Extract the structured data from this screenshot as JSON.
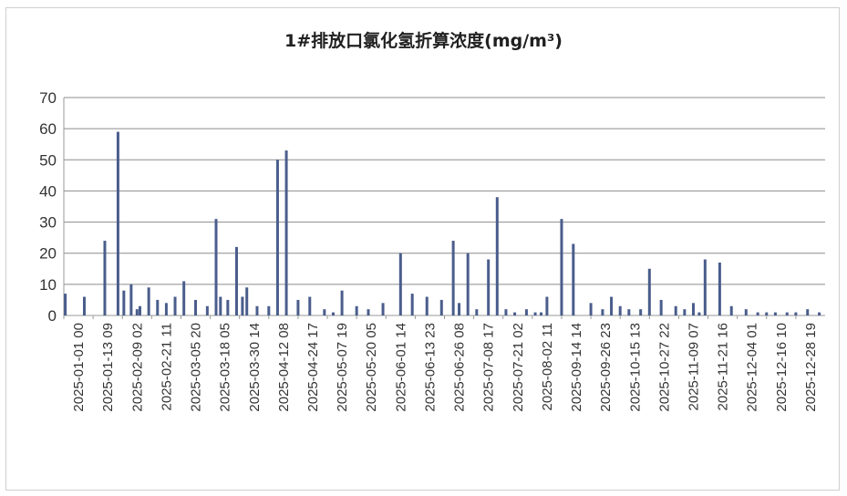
{
  "chart_data": {
    "type": "bar",
    "title": "1#排放口氯化氢折算浓度(mg/m³)",
    "xlabel": "",
    "ylabel": "",
    "ylim": [
      0,
      70
    ],
    "yticks": [
      0,
      10,
      20,
      30,
      40,
      50,
      60,
      70
    ],
    "grid": true,
    "legend": "none",
    "colors": {
      "bar": "#4a5d8c",
      "grid": "#8c8c8c",
      "axis": "#9a9a9a"
    },
    "tick_labels": [
      "2025-01-01 00",
      "2025-01-13 09",
      "2025-02-09 02",
      "2025-02-21 11",
      "2025-03-05 20",
      "2025-03-18 05",
      "2025-03-30 14",
      "2025-04-12 08",
      "2025-04-24 17",
      "2025-05-07 19",
      "2025-05-20 05",
      "2025-06-01 14",
      "2025-06-13 23",
      "2025-06-26 08",
      "2025-07-08 17",
      "2025-07-21 02",
      "2025-08-02 11",
      "2025-09-14 14",
      "2025-09-26 23",
      "2025-10-15 13",
      "2025-10-27 22",
      "2025-11-09 07",
      "2025-11-21 16",
      "2025-12-04 01",
      "2025-12-16 10",
      "2025-12-28 19"
    ],
    "series": [
      {
        "x": [
          0.05,
          0.7,
          1.4,
          1.85,
          2.05,
          2.3,
          2.5,
          2.6,
          2.9,
          3.2,
          3.5,
          3.8,
          4.1,
          4.5,
          4.9,
          5.2,
          5.35,
          5.6,
          5.9,
          6.1,
          6.25,
          6.6,
          7.0,
          7.3,
          7.6,
          8.0,
          8.4,
          8.9,
          9.2,
          9.5,
          10.0,
          10.4,
          10.9,
          11.5,
          11.9,
          12.4,
          12.9,
          13.3,
          13.5,
          13.8,
          14.1,
          14.5,
          14.8,
          15.1,
          15.4,
          15.8,
          16.1,
          16.3,
          16.5,
          17.0,
          17.4,
          18.0,
          18.4,
          18.7,
          19.0,
          19.3,
          19.7,
          20.0,
          20.4,
          20.9,
          21.2,
          21.5,
          21.7,
          21.9,
          22.4,
          22.8,
          23.3,
          23.7,
          24.0,
          24.3,
          24.7,
          25.0,
          25.4,
          25.8
        ],
        "values": [
          7,
          6,
          24,
          59,
          8,
          10,
          2,
          3,
          9,
          5,
          4,
          6,
          11,
          5,
          3,
          31,
          6,
          5,
          22,
          6,
          9,
          3,
          3,
          50,
          53,
          5,
          6,
          2,
          1,
          8,
          3,
          2,
          4,
          20,
          7,
          6,
          5,
          24,
          4,
          20,
          2,
          18,
          38,
          2,
          1,
          2,
          1,
          1,
          6,
          31,
          23,
          4,
          2,
          6,
          3,
          2,
          2,
          15,
          5,
          3,
          2,
          4,
          1,
          18,
          17,
          3,
          2,
          1,
          1,
          1,
          1,
          1,
          2,
          1
        ]
      }
    ]
  }
}
